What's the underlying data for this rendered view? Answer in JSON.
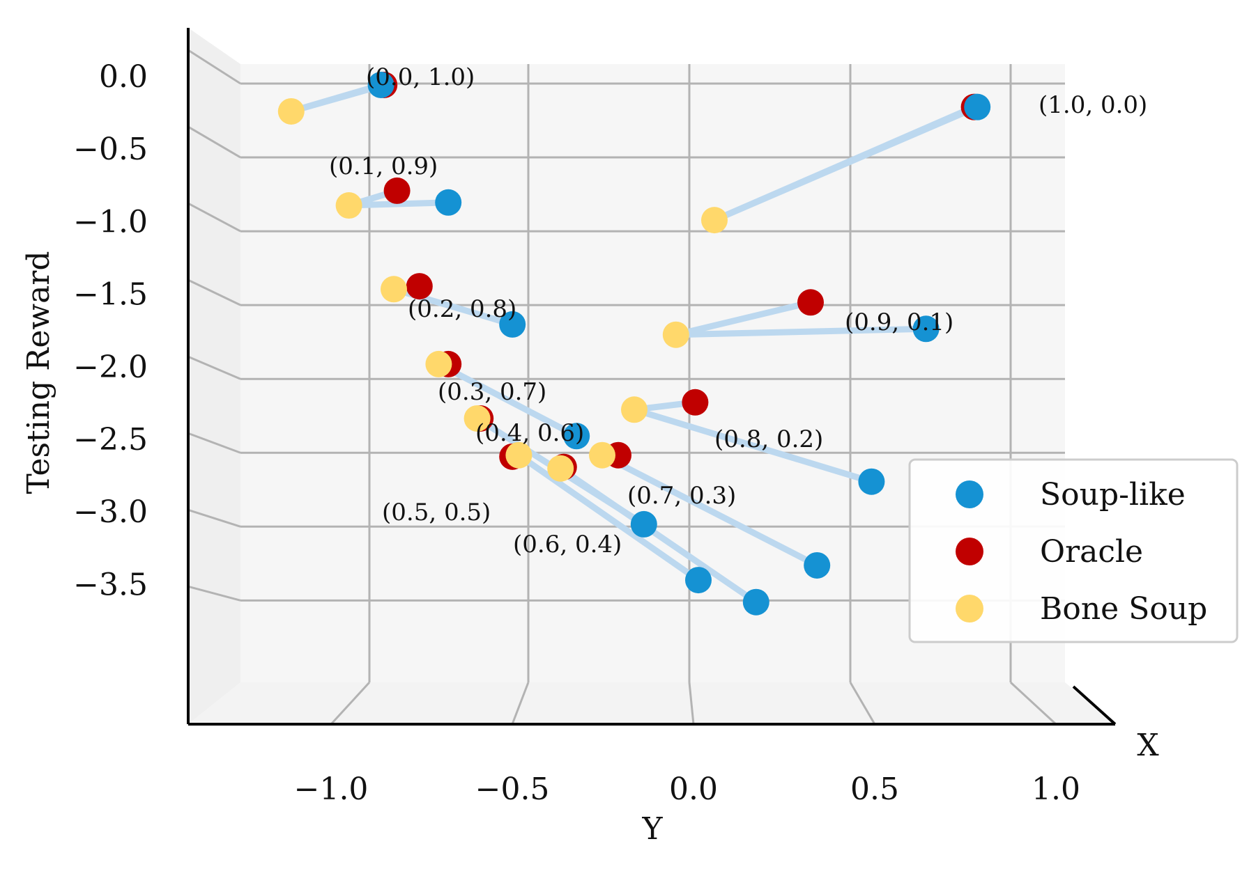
{
  "chart_data": {
    "type": "scatter",
    "subtype": "3d-scatter-projection",
    "title": "",
    "xlabel": "Y",
    "ylabel": "Testing Reward",
    "zlabel": "X",
    "x_ticks": [
      -1.0,
      -0.5,
      0.0,
      0.5,
      1.0
    ],
    "x_tick_labels": [
      "−1.0",
      "−0.5",
      "0.0",
      "0.5",
      "1.0"
    ],
    "y_ticks": [
      0.0,
      -0.5,
      -1.0,
      -1.5,
      -2.0,
      -2.5,
      -3.0,
      -3.5
    ],
    "y_tick_labels": [
      "0.0",
      "−0.5",
      "−1.0",
      "−1.5",
      "−2.0",
      "−2.5",
      "−3.0",
      "−3.5"
    ],
    "ylim": [
      -3.75,
      0.2
    ],
    "grid": true,
    "legend_position": "right",
    "connector_color": "#bcd8ef",
    "series": [
      {
        "name": "Soup-like",
        "color": "#1592d3"
      },
      {
        "name": "Oracle",
        "color": "#c00000"
      },
      {
        "name": "Bone Soup",
        "color": "#ffd86b"
      }
    ],
    "groups": [
      {
        "label": "(0.0, 1.0)",
        "soup": [
          -0.99,
          0.0
        ],
        "oracle": [
          -0.98,
          0.0
        ],
        "bone": [
          -1.27,
          -0.18
        ]
      },
      {
        "label": "(1.0, 0.0)",
        "soup": [
          0.87,
          -0.15
        ],
        "oracle": [
          0.86,
          -0.15
        ],
        "bone": [
          0.05,
          -0.92
        ]
      },
      {
        "label": "(0.1, 0.9)",
        "soup": [
          -0.78,
          -0.8
        ],
        "oracle": [
          -0.94,
          -0.72
        ],
        "bone": [
          -1.09,
          -0.82
        ]
      },
      {
        "label": "(0.2, 0.8)",
        "soup": [
          -0.58,
          -1.63
        ],
        "oracle": [
          -0.87,
          -1.37
        ],
        "bone": [
          -0.95,
          -1.39
        ]
      },
      {
        "label": "(0.9, 0.1)",
        "soup": [
          0.71,
          -1.66
        ],
        "oracle": [
          0.35,
          -1.48
        ],
        "bone": [
          -0.07,
          -1.7
        ]
      },
      {
        "label": "(0.3, 0.7)",
        "soup": [
          -0.38,
          -2.39
        ],
        "oracle": [
          -0.78,
          -1.9
        ],
        "bone": [
          -0.81,
          -1.9
        ]
      },
      {
        "label": "(0.8, 0.2)",
        "soup": [
          0.54,
          -2.7
        ],
        "oracle": [
          -0.01,
          -2.16
        ],
        "bone": [
          -0.2,
          -2.21
        ]
      },
      {
        "label": "(0.4, 0.6)",
        "soup": [
          -0.17,
          -2.99
        ],
        "oracle": [
          -0.68,
          -2.27
        ],
        "bone": [
          -0.69,
          -2.27
        ]
      },
      {
        "label": "(0.5, 0.5)",
        "soup": [
          0.0,
          -3.37
        ],
        "oracle": [
          -0.58,
          -2.53
        ],
        "bone": [
          -0.56,
          -2.52
        ]
      },
      {
        "label": "(0.6, 0.4)",
        "soup": [
          0.18,
          -3.52
        ],
        "oracle": [
          -0.42,
          -2.6
        ],
        "bone": [
          -0.43,
          -2.61
        ]
      },
      {
        "label": "(0.7, 0.3)",
        "soup": [
          0.37,
          -3.27
        ],
        "oracle": [
          -0.25,
          -2.52
        ],
        "bone": [
          -0.3,
          -2.52
        ]
      }
    ]
  }
}
